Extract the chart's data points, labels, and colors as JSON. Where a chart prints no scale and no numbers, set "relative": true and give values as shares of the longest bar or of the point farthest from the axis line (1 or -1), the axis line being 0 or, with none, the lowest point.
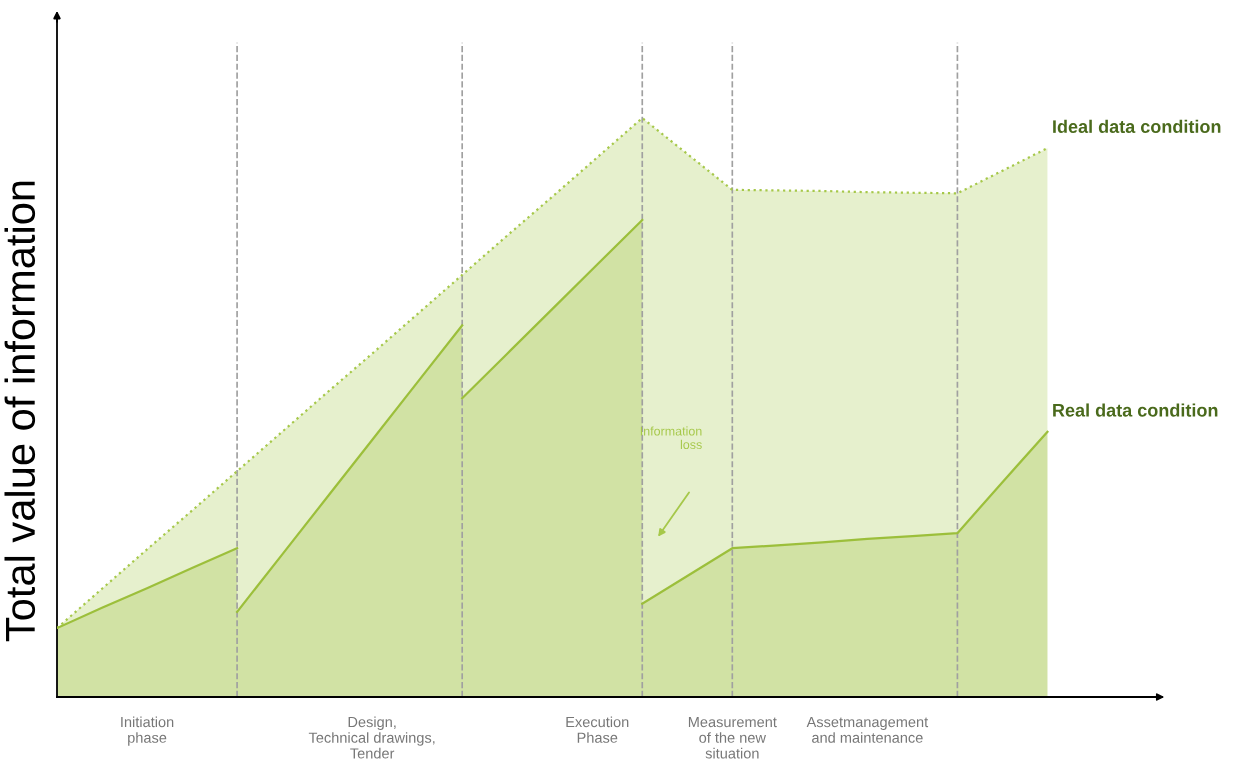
{
  "chart_data": {
    "type": "area",
    "relative": true,
    "ylabel": "Total value of information",
    "categories": [
      null,
      null,
      "Initiation\nphase",
      null,
      null,
      null,
      null,
      "Design,\nTechnical drawings,\nTender",
      null,
      null,
      null,
      null,
      "Execution\nPhase",
      null,
      null,
      "Measurement\nof the new\nsituation",
      null,
      null,
      "Assetmanagement\nand maintenance",
      null,
      null,
      null,
      null
    ],
    "series": [
      {
        "name": "Ideal data condition",
        "color": "#a6c84a",
        "line_style": "dotted",
        "values": [
          0.119,
          0.187,
          0.255,
          0.322,
          0.39,
          0.458,
          0.526,
          0.593,
          0.661,
          0.729,
          0.797,
          0.864,
          0.932,
          1.0,
          0.938,
          0.876,
          0.875,
          0.874,
          0.872,
          0.871,
          0.87,
          0.909,
          0.948
        ]
      },
      {
        "color": "#9cbf3b",
        "line_style": "solid",
        "values": [
          0.119,
          0.154,
          0.188,
          0.223,
          0.257,
          null,
          null,
          null,
          null,
          null,
          null,
          null,
          null,
          null,
          null,
          null,
          null,
          null,
          null,
          null,
          null,
          null,
          null
        ]
      },
      {
        "color": "#9cbf3b",
        "line_style": "solid",
        "values": [
          null,
          null,
          null,
          null,
          0.147,
          0.246,
          0.345,
          0.444,
          0.543,
          0.642,
          null,
          null,
          null,
          null,
          null,
          null,
          null,
          null,
          null,
          null,
          null,
          null,
          null
        ]
      },
      {
        "color": "#9cbf3b",
        "line_style": "solid",
        "values": [
          null,
          null,
          null,
          null,
          null,
          null,
          null,
          null,
          null,
          0.516,
          0.593,
          0.67,
          0.747,
          0.824,
          null,
          null,
          null,
          null,
          null,
          null,
          null,
          null,
          null
        ]
      },
      {
        "name": "Real data condition",
        "color": "#9cbf3b",
        "line_style": "solid",
        "values": [
          null,
          null,
          null,
          null,
          null,
          null,
          null,
          null,
          null,
          null,
          null,
          null,
          null,
          0.161,
          0.209,
          0.257,
          0.262,
          0.267,
          0.273,
          0.278,
          0.283,
          0.371,
          0.458
        ]
      }
    ],
    "annotations": [
      "Information\nloss"
    ],
    "grid": "x",
    "legend": false
  }
}
